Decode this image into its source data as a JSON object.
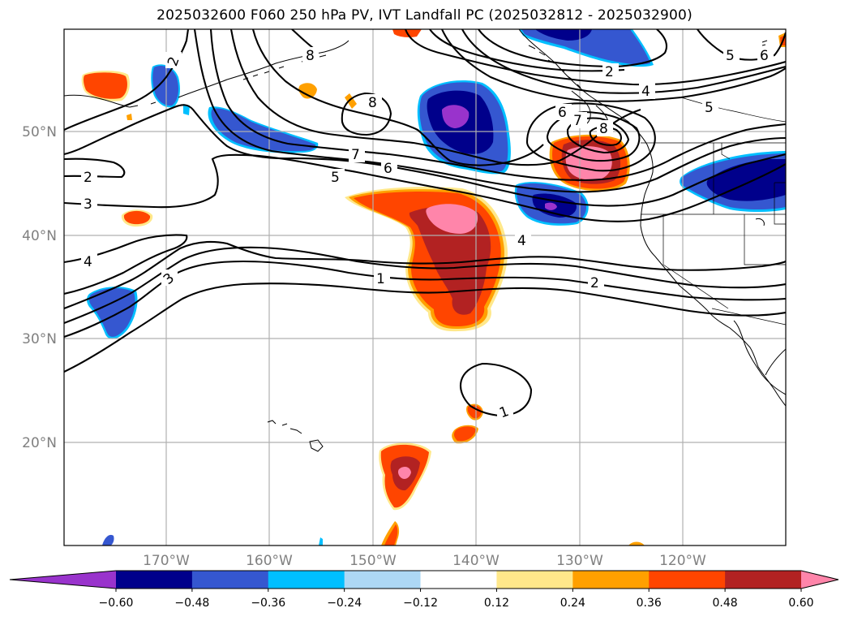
{
  "title": "2025032600 F060 250 hPa PV, IVT Landfall PC (2025032812 - 2025032900)",
  "lat_labels": [
    "50°N",
    "40°N",
    "30°N",
    "20°N"
  ],
  "lon_labels": [
    "170°W",
    "160°W",
    "150°W",
    "140°W",
    "130°W",
    "120°W"
  ],
  "contour_labels": [
    "2",
    "8",
    "8",
    "2",
    "4",
    "5",
    "6",
    "5",
    "7",
    "6",
    "5",
    "6",
    "7",
    "8",
    "2",
    "3",
    "4",
    "4",
    "3",
    "1",
    "2",
    "1"
  ],
  "colorbar": {
    "colors": [
      "#9933cc",
      "#00008b",
      "#3557d0",
      "#00bfff",
      "#add8f5",
      "#ffffff",
      "#ffe88a",
      "#ffa000",
      "#ff4500",
      "#b22222",
      "#ff85aa"
    ],
    "ticks": [
      "−0.60",
      "−0.48",
      "−0.36",
      "−0.24",
      "−0.12",
      "0.12",
      "0.24",
      "0.36",
      "0.48",
      "0.60"
    ]
  }
}
